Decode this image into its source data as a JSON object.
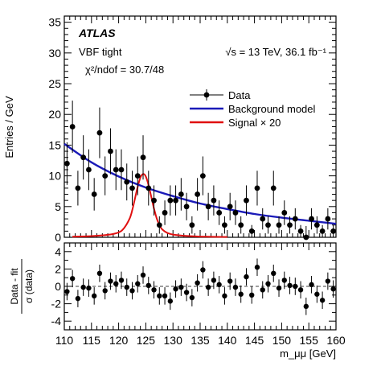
{
  "chart_data": [
    {
      "type": "scatter",
      "panel": "main",
      "experiment_label": "ATLAS",
      "selection_label": "VBF tight",
      "fit_quality_label": "χ²/ndof = 30.7/48",
      "energy_label": "√s = 13 TeV, 36.1 fb⁻¹",
      "ylabel": "Entries / GeV",
      "xlabel": "m_μμ [GeV]",
      "xlim": [
        110,
        160
      ],
      "ylim": [
        0,
        36
      ],
      "xticks": [
        110,
        115,
        120,
        125,
        130,
        135,
        140,
        145,
        150,
        155,
        160
      ],
      "yticks": [
        0,
        5,
        10,
        15,
        20,
        25,
        30,
        35
      ],
      "legend_position": "top-right",
      "legend": [
        {
          "name": "Data",
          "marker": "point-with-error",
          "color": "#000000"
        },
        {
          "name": "Background model",
          "marker": "line",
          "color": "#1a1ab8"
        },
        {
          "name": "Signal × 20",
          "marker": "line",
          "color": "#e01010"
        }
      ],
      "data": {
        "name": "Data",
        "x": [
          110.5,
          111.5,
          112.5,
          113.5,
          114.5,
          115.5,
          116.5,
          117.5,
          118.5,
          119.5,
          120.5,
          121.5,
          122.5,
          123.5,
          124.5,
          125.5,
          126.5,
          127.5,
          128.5,
          129.5,
          130.5,
          131.5,
          132.5,
          133.5,
          134.5,
          135.5,
          136.5,
          137.5,
          138.5,
          139.5,
          140.5,
          141.5,
          142.5,
          143.5,
          144.5,
          145.5,
          146.5,
          147.5,
          148.5,
          149.5,
          150.5,
          151.5,
          152.5,
          153.5,
          154.5,
          155.5,
          156.5,
          157.5,
          158.5,
          159.5
        ],
        "y": [
          12,
          18,
          8,
          13,
          11,
          7,
          17,
          10,
          14,
          11,
          11,
          9,
          8,
          10,
          13,
          8,
          6,
          2,
          4,
          6,
          6,
          7,
          5,
          2,
          7,
          10,
          5,
          6,
          4,
          2,
          5,
          4,
          2,
          6,
          1,
          8,
          3,
          2,
          8,
          2,
          4,
          2,
          3,
          1,
          0,
          3,
          2,
          1,
          3,
          1
        ]
      },
      "background_model": {
        "name": "Background model",
        "x": [
          110,
          115,
          120,
          125,
          130,
          135,
          140,
          145,
          150,
          155,
          160
        ],
        "y": [
          15.2,
          12.2,
          9.9,
          8.1,
          6.7,
          5.5,
          4.6,
          3.8,
          3.2,
          2.7,
          2.2
        ]
      },
      "signal": {
        "name": "Signal × 20",
        "x": [
          111.5,
          115,
          118,
          120,
          121,
          122,
          122.5,
          123,
          123.5,
          124,
          124.5,
          125,
          125.5,
          126,
          126.5,
          127,
          127.5,
          128,
          129,
          130,
          132,
          135,
          140
        ],
        "y": [
          0.1,
          0.2,
          0.4,
          0.8,
          1.5,
          3.0,
          4.4,
          6.3,
          8.2,
          9.7,
          10.3,
          9.9,
          8.5,
          6.6,
          4.7,
          3.1,
          2.0,
          1.3,
          0.7,
          0.45,
          0.25,
          0.12,
          0.05
        ]
      }
    },
    {
      "type": "scatter",
      "panel": "ratio",
      "ylabel_numerator": "Data - fit",
      "ylabel_denominator": "σ (data)",
      "xlabel": "m_μμ [GeV]",
      "xlim": [
        110,
        160
      ],
      "ylim": [
        -5,
        5
      ],
      "xticks": [
        110,
        115,
        120,
        125,
        130,
        135,
        140,
        145,
        150,
        155,
        160
      ],
      "yticks": [
        -4,
        -2,
        0,
        2,
        4
      ],
      "reference_line": 0,
      "x": [
        110.5,
        111.5,
        112.5,
        113.5,
        114.5,
        115.5,
        116.5,
        117.5,
        118.5,
        119.5,
        120.5,
        121.5,
        122.5,
        123.5,
        124.5,
        125.5,
        126.5,
        127.5,
        128.5,
        129.5,
        130.5,
        131.5,
        132.5,
        133.5,
        134.5,
        135.5,
        136.5,
        137.5,
        138.5,
        139.5,
        140.5,
        141.5,
        142.5,
        143.5,
        144.5,
        145.5,
        146.5,
        147.5,
        148.5,
        149.5,
        150.5,
        151.5,
        152.5,
        153.5,
        154.5,
        155.5,
        156.5,
        157.5,
        158.5,
        159.5
      ],
      "y": [
        -0.6,
        0.9,
        -1.4,
        -0.1,
        -0.2,
        -1.1,
        1.5,
        -0.5,
        0.6,
        0.3,
        0.7,
        -0.1,
        -0.5,
        0.3,
        1.3,
        0.1,
        -0.4,
        -1.1,
        -1.1,
        -1.7,
        -0.3,
        -0.1,
        -0.7,
        -1.3,
        0.4,
        1.9,
        -0.1,
        0.7,
        0.2,
        -1.1,
        0.6,
        -0.1,
        -0.9,
        1.1,
        -1.0,
        2.2,
        -0.4,
        0.3,
        1.5,
        -0.2,
        0.7,
        0.1,
        0.0,
        -0.4,
        -2.3,
        0.2,
        -0.9,
        -1.6,
        0.6,
        -0.3
      ],
      "error": 1
    }
  ],
  "colors": {
    "data": "#000000",
    "background": "#1a1ab8",
    "signal": "#e01010",
    "axis": "#000000"
  }
}
